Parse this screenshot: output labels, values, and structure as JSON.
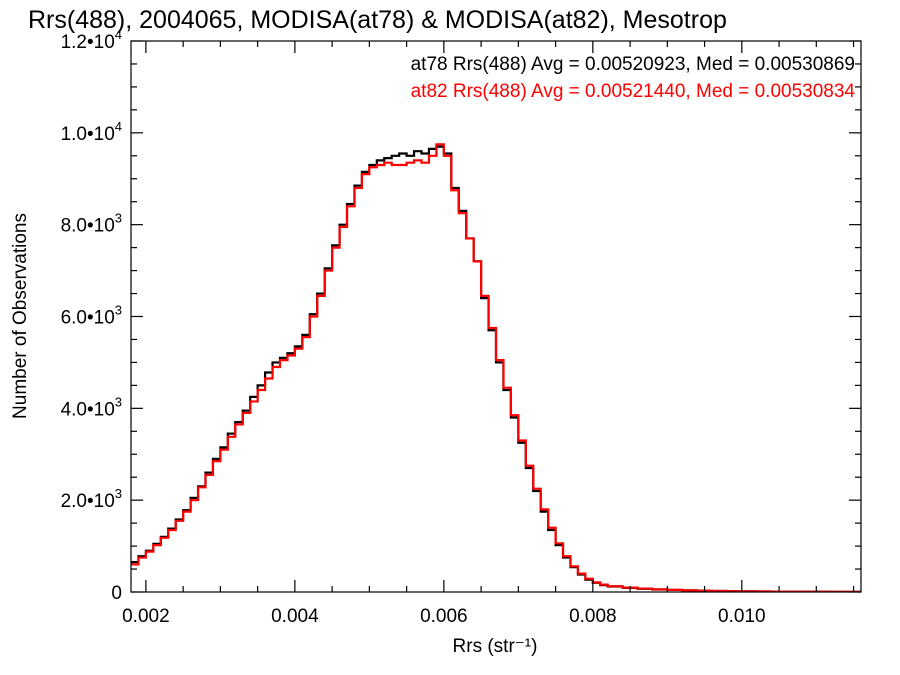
{
  "chart_data": {
    "type": "line",
    "step": true,
    "title": "Rrs(488), 2004065, MODISA(at78) & MODISA(at82), Mesotrop",
    "xlabel": "Rrs (str⁻¹)",
    "ylabel": "Number of Observations",
    "xlim": [
      0.0018,
      0.0116
    ],
    "ylim": [
      0,
      12000
    ],
    "grid": false,
    "legend": "top-right",
    "x_ticks": [
      {
        "value": 0.002,
        "label": "0.002"
      },
      {
        "value": 0.004,
        "label": "0.004"
      },
      {
        "value": 0.006,
        "label": "0.006"
      },
      {
        "value": 0.008,
        "label": "0.008"
      },
      {
        "value": 0.01,
        "label": "0.010"
      }
    ],
    "y_ticks": [
      {
        "value": 0,
        "mant": "0",
        "exp": ""
      },
      {
        "value": 2000,
        "mant": "2.0•10",
        "exp": "3"
      },
      {
        "value": 4000,
        "mant": "4.0•10",
        "exp": "3"
      },
      {
        "value": 6000,
        "mant": "6.0•10",
        "exp": "3"
      },
      {
        "value": 8000,
        "mant": "8.0•10",
        "exp": "3"
      },
      {
        "value": 10000,
        "mant": "1.0•10",
        "exp": "4"
      },
      {
        "value": 12000,
        "mant": "1.2•10",
        "exp": "4"
      }
    ],
    "annotations": [
      {
        "text": "at78 Rrs(488) Avg = 0.00520923, Med = 0.00530869",
        "color": "#000000"
      },
      {
        "text": "at82 Rrs(488) Avg = 0.00521440, Med = 0.00530834",
        "color": "#ff0000"
      }
    ],
    "series": [
      {
        "color": "#000000",
        "x": [
          0.0018,
          0.0019,
          0.002,
          0.0021,
          0.0022,
          0.0023,
          0.0024,
          0.0025,
          0.0026,
          0.0027,
          0.0028,
          0.0029,
          0.003,
          0.0031,
          0.0032,
          0.0033,
          0.0034,
          0.0035,
          0.0036,
          0.0037,
          0.0038,
          0.0039,
          0.004,
          0.0041,
          0.0042,
          0.0043,
          0.0044,
          0.0045,
          0.0046,
          0.0047,
          0.0048,
          0.0049,
          0.005,
          0.0051,
          0.0052,
          0.0053,
          0.0054,
          0.0055,
          0.0056,
          0.0057,
          0.0058,
          0.0059,
          0.006,
          0.0061,
          0.0062,
          0.0063,
          0.0064,
          0.0065,
          0.0066,
          0.0067,
          0.0068,
          0.0069,
          0.007,
          0.0071,
          0.0072,
          0.0073,
          0.0074,
          0.0075,
          0.0076,
          0.0077,
          0.0078,
          0.0079,
          0.008,
          0.0081,
          0.0082,
          0.0084,
          0.0086,
          0.0088,
          0.009,
          0.0092,
          0.0094,
          0.0096,
          0.0098,
          0.01,
          0.0102,
          0.0104,
          0.0106,
          0.0108,
          0.011,
          0.0112,
          0.0114,
          0.0116
        ],
        "y": [
          650,
          780,
          900,
          1050,
          1200,
          1380,
          1580,
          1780,
          2050,
          2300,
          2600,
          2900,
          3150,
          3450,
          3700,
          3950,
          4250,
          4500,
          4780,
          5000,
          5100,
          5200,
          5350,
          5600,
          6050,
          6500,
          7050,
          7550,
          8000,
          8450,
          8850,
          9150,
          9300,
          9400,
          9450,
          9500,
          9550,
          9500,
          9600,
          9550,
          9650,
          9700,
          9550,
          8800,
          8300,
          7700,
          7200,
          6400,
          5700,
          5000,
          4400,
          3800,
          3250,
          2700,
          2200,
          1750,
          1350,
          1020,
          750,
          540,
          380,
          270,
          200,
          150,
          120,
          90,
          70,
          55,
          45,
          35,
          28,
          22,
          18,
          14,
          12,
          10,
          8,
          6,
          5,
          4,
          3,
          2
        ]
      },
      {
        "color": "#ff0000",
        "x": [
          0.0018,
          0.0019,
          0.002,
          0.0021,
          0.0022,
          0.0023,
          0.0024,
          0.0025,
          0.0026,
          0.0027,
          0.0028,
          0.0029,
          0.003,
          0.0031,
          0.0032,
          0.0033,
          0.0034,
          0.0035,
          0.0036,
          0.0037,
          0.0038,
          0.0039,
          0.004,
          0.0041,
          0.0042,
          0.0043,
          0.0044,
          0.0045,
          0.0046,
          0.0047,
          0.0048,
          0.0049,
          0.005,
          0.0051,
          0.0052,
          0.0053,
          0.0054,
          0.0055,
          0.0056,
          0.0057,
          0.0058,
          0.0059,
          0.006,
          0.0061,
          0.0062,
          0.0063,
          0.0064,
          0.0065,
          0.0066,
          0.0067,
          0.0068,
          0.0069,
          0.007,
          0.0071,
          0.0072,
          0.0073,
          0.0074,
          0.0075,
          0.0076,
          0.0077,
          0.0078,
          0.0079,
          0.008,
          0.0081,
          0.0082,
          0.0084,
          0.0086,
          0.0088,
          0.009,
          0.0092,
          0.0094,
          0.0096,
          0.0098,
          0.01,
          0.0102,
          0.0104,
          0.0106,
          0.0108,
          0.011,
          0.0112,
          0.0114,
          0.0116
        ],
        "y": [
          600,
          750,
          880,
          1020,
          1180,
          1350,
          1550,
          1750,
          2000,
          2280,
          2550,
          2850,
          3100,
          3380,
          3650,
          3900,
          4150,
          4400,
          4650,
          4900,
          5050,
          5150,
          5300,
          5550,
          6000,
          6450,
          7000,
          7500,
          7950,
          8400,
          8800,
          9100,
          9250,
          9300,
          9350,
          9300,
          9300,
          9350,
          9400,
          9350,
          9500,
          9750,
          9500,
          8750,
          8250,
          7700,
          7200,
          6450,
          5750,
          5050,
          4450,
          3850,
          3300,
          2750,
          2250,
          1800,
          1400,
          1060,
          780,
          560,
          400,
          290,
          210,
          160,
          125,
          95,
          75,
          58,
          46,
          36,
          29,
          23,
          18,
          14,
          12,
          10,
          8,
          6,
          5,
          4,
          3,
          2
        ]
      }
    ]
  }
}
